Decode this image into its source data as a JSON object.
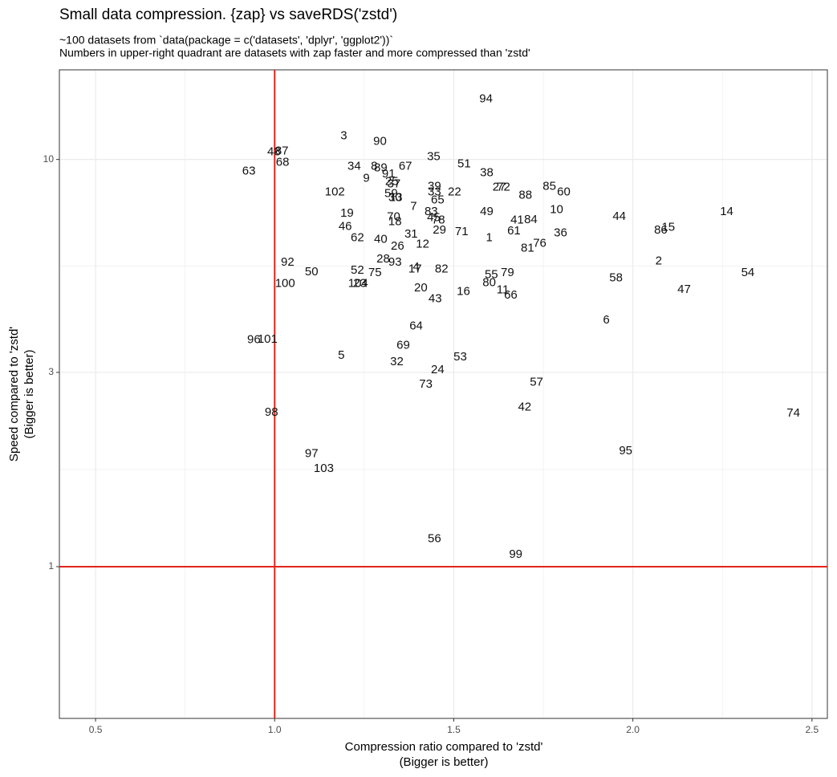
{
  "chart_data": {
    "type": "scatter",
    "title": "Small data compression. {zap} vs saveRDS('zstd')",
    "subtitle": [
      "~100 datasets from `data(package = c('datasets', 'dplyr', 'ggplot2'))`",
      "Numbers in upper-right quadrant are datasets with zap faster and more compressed than 'zstd'"
    ],
    "x_label": [
      "Compression ratio compared to 'zstd'",
      "(Bigger is better)"
    ],
    "y_label": [
      "Speed compared to 'zstd'",
      "(Bigger is better)"
    ],
    "labels": [
      "94",
      "3",
      "90",
      "48",
      "87",
      "68",
      "63",
      "35",
      "51",
      "34",
      "8",
      "89",
      "67",
      "38",
      "9",
      "91",
      "25",
      "37",
      "102",
      "39",
      "33",
      "22",
      "27",
      "72",
      "88",
      "85",
      "60",
      "59",
      "30",
      "13",
      "65",
      "7",
      "49",
      "10",
      "44",
      "14",
      "19",
      "83",
      "70",
      "18",
      "45",
      "78",
      "41",
      "84",
      "86",
      "15",
      "46",
      "29",
      "71",
      "61",
      "31",
      "1",
      "36",
      "62",
      "40",
      "26",
      "12",
      "76",
      "81",
      "92",
      "2",
      "28",
      "93",
      "4",
      "17",
      "82",
      "50",
      "52",
      "75",
      "55",
      "79",
      "54",
      "58",
      "80",
      "100",
      "104",
      "23",
      "20",
      "11",
      "66",
      "16",
      "47",
      "43",
      "6",
      "64",
      "96",
      "101",
      "69",
      "5",
      "53",
      "32",
      "24",
      "73",
      "57",
      "42",
      "98",
      "74",
      "95",
      "97",
      "103",
      "56",
      "99"
    ],
    "x": [
      1.59,
      1.193,
      1.294,
      0.998,
      1.02,
      1.022,
      0.928,
      1.444,
      1.529,
      1.222,
      1.278,
      1.296,
      1.365,
      1.592,
      1.256,
      1.318,
      1.327,
      1.333,
      1.168,
      1.446,
      1.446,
      1.502,
      1.627,
      1.639,
      1.7,
      1.767,
      1.807,
      1.325,
      1.336,
      1.338,
      1.455,
      1.388,
      1.592,
      1.787,
      1.962,
      2.262,
      1.202,
      1.437,
      1.332,
      1.336,
      1.444,
      1.457,
      1.677,
      1.715,
      2.078,
      2.099,
      1.197,
      1.46,
      1.522,
      1.668,
      1.381,
      1.599,
      1.798,
      1.231,
      1.296,
      1.343,
      1.413,
      1.74,
      1.706,
      1.036,
      2.072,
      1.303,
      1.336,
      1.395,
      1.392,
      1.466,
      1.103,
      1.231,
      1.28,
      1.605,
      1.65,
      2.321,
      1.953,
      1.599,
      1.029,
      1.233,
      1.238,
      1.408,
      1.637,
      1.659,
      1.527,
      2.143,
      1.448,
      1.926,
      1.395,
      0.942,
      0.98,
      1.359,
      1.186,
      1.518,
      1.341,
      1.455,
      1.422,
      1.731,
      1.698,
      0.991,
      2.448,
      1.98,
      1.103,
      1.137,
      1.446,
      1.673
    ],
    "values": [
      14.06,
      11.41,
      11.05,
      10.42,
      10.47,
      9.82,
      9.34,
      10.14,
      9.73,
      9.6,
      9.6,
      9.51,
      9.6,
      9.26,
      8.97,
      9.21,
      8.81,
      8.69,
      8.3,
      8.57,
      8.3,
      8.3,
      8.53,
      8.53,
      8.15,
      8.57,
      8.3,
      8.23,
      8.04,
      8.04,
      7.93,
      7.65,
      7.44,
      7.51,
      7.24,
      7.44,
      7.37,
      7.44,
      7.21,
      7.02,
      7.18,
      7.08,
      7.08,
      7.11,
      6.7,
      6.8,
      6.83,
      6.7,
      6.64,
      6.67,
      6.55,
      6.41,
      6.59,
      6.41,
      6.35,
      6.12,
      6.18,
      6.21,
      6.04,
      5.59,
      5.62,
      5.69,
      5.59,
      5.44,
      5.37,
      5.37,
      5.29,
      5.34,
      5.27,
      5.2,
      5.27,
      5.27,
      5.11,
      4.97,
      4.95,
      4.95,
      4.95,
      4.83,
      4.77,
      4.64,
      4.73,
      4.79,
      4.54,
      4.03,
      3.89,
      3.6,
      3.61,
      3.49,
      3.3,
      3.27,
      3.18,
      3.04,
      2.8,
      2.83,
      2.46,
      2.39,
      2.38,
      1.92,
      1.89,
      1.74,
      1.17,
      1.07
    ],
    "xlim": [
      0.399,
      2.543
    ],
    "ylim": [
      0.424,
      16.6
    ],
    "xticks": [
      0.5,
      {
        "value": 1,
        "label": "1.0"
      },
      1.5,
      {
        "value": 2,
        "label": "2.0"
      },
      2.5
    ],
    "yticks": [
      1,
      3,
      10
    ],
    "log_y": true,
    "grid": true,
    "hline": 1,
    "vline": 1,
    "reference_color": "#e3241b",
    "color": "#111111"
  }
}
